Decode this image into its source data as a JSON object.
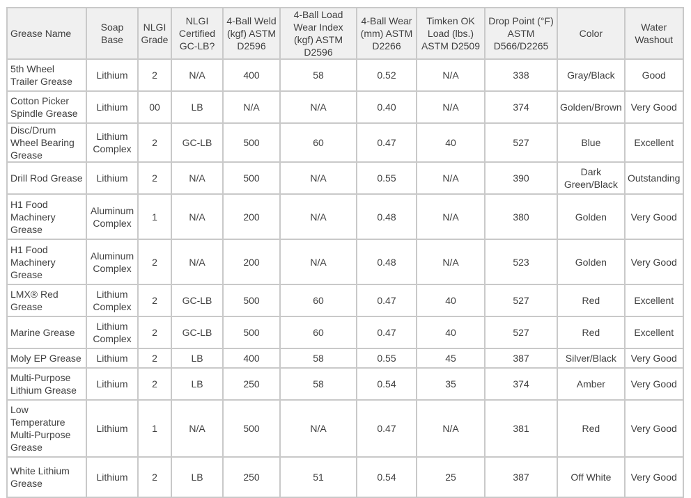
{
  "table": {
    "headers": [
      "Grease Name",
      "Soap Base",
      "NLGI Grade",
      "NLGI Certified GC-LB?",
      "4-Ball Weld (kgf) ASTM D2596",
      "4-Ball Load Wear Index (kgf) ASTM D2596",
      "4-Ball Wear (mm) ASTM D2266",
      "Timken OK Load (lbs.) ASTM D2509",
      "Drop Point (°F) ASTM D566/D2265",
      "Color",
      "Water Washout"
    ],
    "rows": [
      [
        "5th Wheel Trailer Grease",
        "Lithium",
        "2",
        "N/A",
        "400",
        "58",
        "0.52",
        "N/A",
        "338",
        "Gray/Black",
        "Good"
      ],
      [
        "Cotton Picker Spindle Grease",
        "Lithium",
        "00",
        "LB",
        "N/A",
        "N/A",
        "0.40",
        "N/A",
        "374",
        "Golden/Brown",
        "Very Good"
      ],
      [
        "Disc/Drum Wheel Bearing Grease",
        "Lithium Complex",
        "2",
        "GC-LB",
        "500",
        "60",
        "0.47",
        "40",
        "527",
        "Blue",
        "Excellent"
      ],
      [
        "Drill Rod Grease",
        "Lithium",
        "2",
        "N/A",
        "500",
        "N/A",
        "0.55",
        "N/A",
        "390",
        "Dark Green/Black",
        "Outstanding"
      ],
      [
        "H1 Food Machinery Grease",
        "Aluminum Complex",
        "1",
        "N/A",
        "200",
        "N/A",
        "0.48",
        "N/A",
        "380",
        "Golden",
        "Very Good"
      ],
      [
        "H1 Food Machinery Grease",
        "Aluminum Complex",
        "2",
        "N/A",
        "200",
        "N/A",
        "0.48",
        "N/A",
        "523",
        "Golden",
        "Very Good"
      ],
      [
        "LMX® Red Grease",
        "Lithium Complex",
        "2",
        "GC-LB",
        "500",
        "60",
        "0.47",
        "40",
        "527",
        "Red",
        "Excellent"
      ],
      [
        "Marine Grease",
        "Lithium Complex",
        "2",
        "GC-LB",
        "500",
        "60",
        "0.47",
        "40",
        "527",
        "Red",
        "Excellent"
      ],
      [
        "Moly EP Grease",
        "Lithium",
        "2",
        "LB",
        "400",
        "58",
        "0.55",
        "45",
        "387",
        "Silver/Black",
        "Very Good"
      ],
      [
        "Multi-Purpose Lithium Grease",
        "Lithium",
        "2",
        "LB",
        "250",
        "58",
        "0.54",
        "35",
        "374",
        "Amber",
        "Very Good"
      ],
      [
        "Low Temperature Multi-Purpose Grease",
        "Lithium",
        "1",
        "N/A",
        "500",
        "N/A",
        "0.47",
        "N/A",
        "381",
        "Red",
        "Very Good"
      ],
      [
        "White Lithium Grease",
        "Lithium",
        "2",
        "LB",
        "250",
        "51",
        "0.54",
        "25",
        "387",
        "Off White",
        "Very Good"
      ]
    ]
  }
}
